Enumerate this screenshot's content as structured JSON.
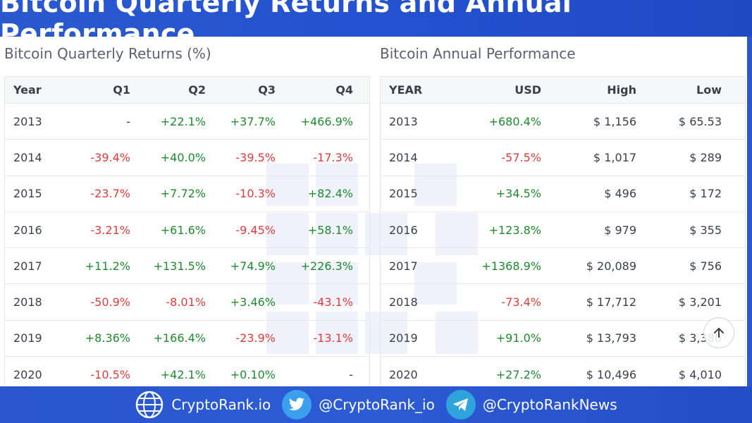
{
  "header": {
    "title": "Bitcoin Quarterly Returns and Annual Performance"
  },
  "quarterly": {
    "title": "Bitcoin Quarterly Returns (%)",
    "columns": [
      "Year",
      "Q1",
      "Q2",
      "Q3",
      "Q4"
    ],
    "rows": [
      {
        "cells": [
          "2013",
          "-",
          "+22.1%",
          "+37.7%",
          "+466.9%"
        ],
        "tones": [
          "neu",
          "neu",
          "pos",
          "pos",
          "pos"
        ]
      },
      {
        "cells": [
          "2014",
          "-39.4%",
          "+40.0%",
          "-39.5%",
          "-17.3%"
        ],
        "tones": [
          "neu",
          "neg",
          "pos",
          "neg",
          "neg"
        ]
      },
      {
        "cells": [
          "2015",
          "-23.7%",
          "+7.72%",
          "-10.3%",
          "+82.4%"
        ],
        "tones": [
          "neu",
          "neg",
          "pos",
          "neg",
          "pos"
        ]
      },
      {
        "cells": [
          "2016",
          "-3.21%",
          "+61.6%",
          "-9.45%",
          "+58.1%"
        ],
        "tones": [
          "neu",
          "neg",
          "pos",
          "neg",
          "pos"
        ]
      },
      {
        "cells": [
          "2017",
          "+11.2%",
          "+131.5%",
          "+74.9%",
          "+226.3%"
        ],
        "tones": [
          "neu",
          "pos",
          "pos",
          "pos",
          "pos"
        ]
      },
      {
        "cells": [
          "2018",
          "-50.9%",
          "-8.01%",
          "+3.46%",
          "-43.1%"
        ],
        "tones": [
          "neu",
          "neg",
          "neg",
          "pos",
          "neg"
        ]
      },
      {
        "cells": [
          "2019",
          "+8.36%",
          "+166.4%",
          "-23.9%",
          "-13.1%"
        ],
        "tones": [
          "neu",
          "pos",
          "pos",
          "neg",
          "neg"
        ]
      },
      {
        "cells": [
          "2020",
          "-10.5%",
          "+42.1%",
          "+0.10%",
          "-"
        ],
        "tones": [
          "neu",
          "neg",
          "pos",
          "pos",
          "neu"
        ]
      }
    ]
  },
  "annual": {
    "title": "Bitcoin Annual Performance",
    "columns": [
      "YEAR",
      "USD",
      "High",
      "Low"
    ],
    "rows": [
      {
        "cells": [
          "2013",
          "+680.4%",
          "$ 1,156",
          "$ 65.53"
        ],
        "tones": [
          "neu",
          "pos",
          "neu",
          "neu"
        ]
      },
      {
        "cells": [
          "2014",
          "-57.5%",
          "$ 1,017",
          "$ 289"
        ],
        "tones": [
          "neu",
          "neg",
          "neu",
          "neu"
        ]
      },
      {
        "cells": [
          "2015",
          "+34.5%",
          "$ 496",
          "$ 172"
        ],
        "tones": [
          "neu",
          "pos",
          "neu",
          "neu"
        ]
      },
      {
        "cells": [
          "2016",
          "+123.8%",
          "$ 979",
          "$ 355"
        ],
        "tones": [
          "neu",
          "pos",
          "neu",
          "neu"
        ]
      },
      {
        "cells": [
          "2017",
          "+1368.9%",
          "$ 20,089",
          "$ 756"
        ],
        "tones": [
          "neu",
          "pos",
          "neu",
          "neu"
        ]
      },
      {
        "cells": [
          "2018",
          "-73.4%",
          "$ 17,712",
          "$ 3,201"
        ],
        "tones": [
          "neu",
          "neg",
          "neu",
          "neu"
        ]
      },
      {
        "cells": [
          "2019",
          "+91.0%",
          "$ 13,793",
          "$ 3,380"
        ],
        "tones": [
          "neu",
          "pos",
          "neu",
          "neu"
        ]
      },
      {
        "cells": [
          "2020",
          "+27.2%",
          "$ 10,496",
          "$ 4,010"
        ],
        "tones": [
          "neu",
          "pos",
          "neu",
          "neu"
        ]
      }
    ]
  },
  "footer": {
    "items": [
      {
        "icon": "globe-icon",
        "label": "CryptoRank.io"
      },
      {
        "icon": "twitter-icon",
        "label": "@CryptoRank_io"
      },
      {
        "icon": "telegram-icon",
        "label": "@CryptoRankNews"
      }
    ]
  },
  "colors": {
    "positive": "#1f8a2f",
    "negative": "#e23b3b",
    "brand": "#2a59cf"
  }
}
